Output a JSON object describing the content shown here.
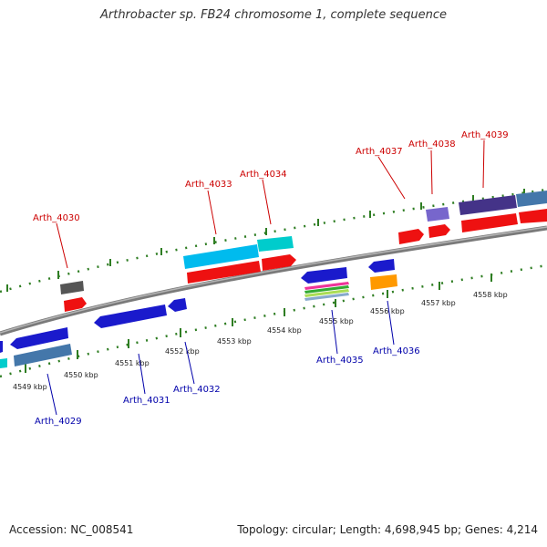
{
  "header": {
    "title": "Arthrobacter sp. FB24 chromosome 1, complete sequence"
  },
  "footer": {
    "accession": "Accession: NC_008541",
    "topology": "Topology: circular; Length: 4,698,945 bp; Genes: 4,214"
  },
  "colors": {
    "backbone": "#808080",
    "tick": "#2e7d22",
    "label_top": "#cc0000",
    "label_bottom": "#0000aa"
  },
  "scale_labels": [
    "4549 kbp",
    "4550 kbp",
    "4551 kbp",
    "4552 kbp",
    "4553 kbp",
    "4554 kbp",
    "4555 kbp",
    "4556 kbp",
    "4557 kbp",
    "4558 kbp"
  ],
  "gene_labels_top": [
    "Arth_4030",
    "Arth_4033",
    "Arth_4034",
    "Arth_4037",
    "Arth_4038",
    "Arth_4039"
  ],
  "gene_labels_bottom": [
    "Arth_4029",
    "Arth_4031",
    "Arth_4032",
    "Arth_4035",
    "Arth_4036"
  ]
}
